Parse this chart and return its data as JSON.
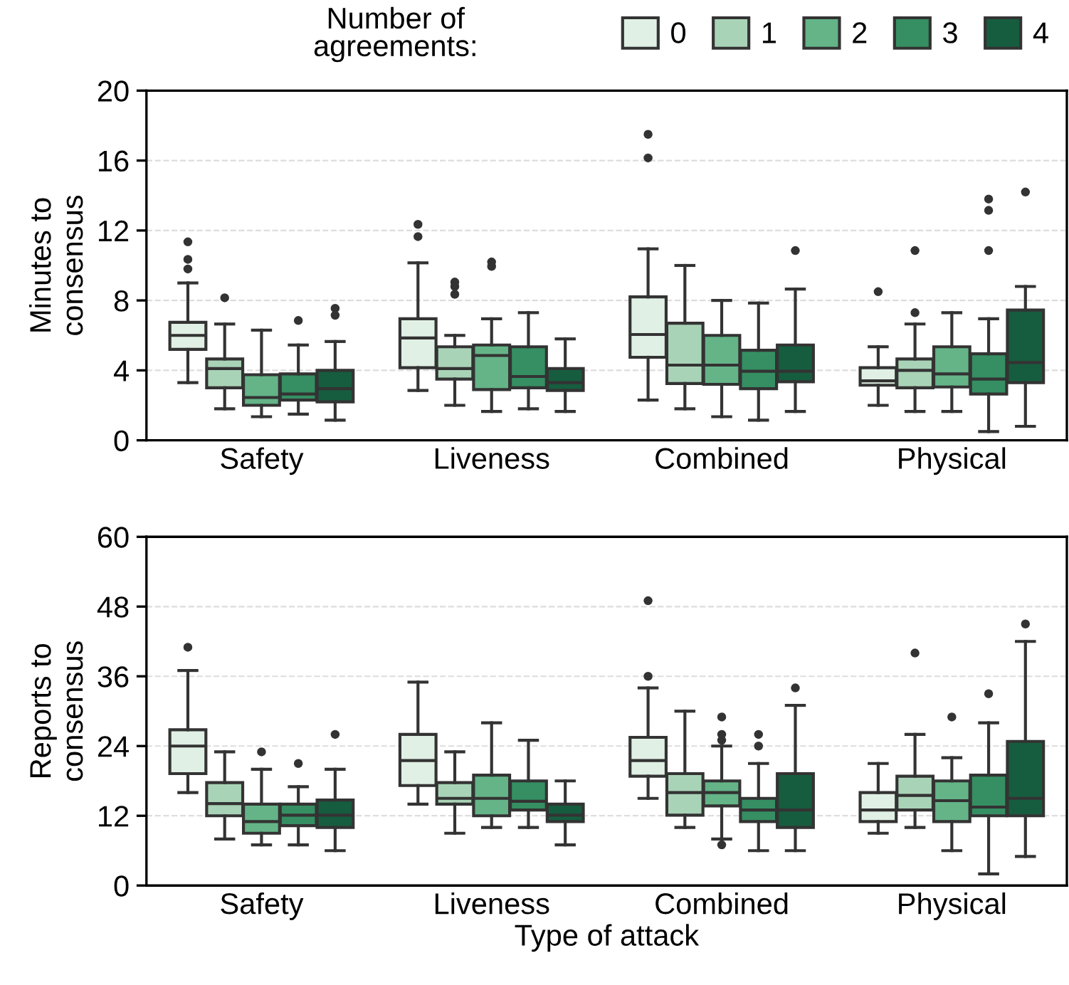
{
  "chart_data": [
    {
      "type": "box",
      "ylabel": "Minutes to\nconsensus",
      "categories": [
        "Safety",
        "Liveness",
        "Combined",
        "Physical"
      ],
      "ylim": [
        0,
        20
      ],
      "yticks": [
        0,
        4,
        8,
        12,
        16,
        20
      ],
      "grid": "y",
      "legend": "top",
      "legend_title": "Number of\nagreements:",
      "series": [
        {
          "name": "0",
          "color": "#e1f0e4",
          "boxes": [
            {
              "low": 3.3,
              "q1": 5.2,
              "median": 6.0,
              "q3": 6.75,
              "high": 9.0,
              "outliers": [
                11.35,
                10.35,
                9.8
              ]
            },
            {
              "low": 2.85,
              "q1": 4.15,
              "median": 5.85,
              "q3": 6.95,
              "high": 10.15,
              "outliers": [
                12.35,
                11.65
              ]
            },
            {
              "low": 2.3,
              "q1": 4.75,
              "median": 6.05,
              "q3": 8.2,
              "high": 10.95,
              "outliers": [
                17.5,
                16.15
              ]
            },
            {
              "low": 2.0,
              "q1": 3.15,
              "median": 3.4,
              "q3": 4.15,
              "high": 5.35,
              "outliers": [
                8.5
              ]
            }
          ]
        },
        {
          "name": "1",
          "color": "#a9d3b7",
          "boxes": [
            {
              "low": 1.8,
              "q1": 3.0,
              "median": 4.1,
              "q3": 4.65,
              "high": 6.65,
              "outliers": [
                8.15
              ]
            },
            {
              "low": 2.0,
              "q1": 3.5,
              "median": 4.1,
              "q3": 5.35,
              "high": 6.0,
              "outliers": [
                9.05,
                8.8,
                8.35
              ]
            },
            {
              "low": 1.8,
              "q1": 3.25,
              "median": 4.3,
              "q3": 6.7,
              "high": 10.0
            },
            {
              "low": 1.65,
              "q1": 3.0,
              "median": 4.0,
              "q3": 4.65,
              "high": 6.65,
              "outliers": [
                10.85,
                7.3
              ]
            }
          ]
        },
        {
          "name": "2",
          "color": "#64b488",
          "boxes": [
            {
              "low": 1.35,
              "q1": 2.0,
              "median": 2.45,
              "q3": 3.75,
              "high": 6.3
            },
            {
              "low": 1.65,
              "q1": 2.9,
              "median": 4.85,
              "q3": 5.45,
              "high": 6.95,
              "outliers": [
                10.2,
                9.95
              ]
            },
            {
              "low": 1.35,
              "q1": 3.2,
              "median": 4.3,
              "q3": 6.0,
              "high": 8.0
            },
            {
              "low": 1.65,
              "q1": 3.05,
              "median": 3.8,
              "q3": 5.35,
              "high": 7.3
            }
          ]
        },
        {
          "name": "3",
          "color": "#358f62",
          "boxes": [
            {
              "low": 1.5,
              "q1": 2.3,
              "median": 2.65,
              "q3": 3.8,
              "high": 5.45,
              "outliers": [
                6.85
              ]
            },
            {
              "low": 1.8,
              "q1": 3.0,
              "median": 3.65,
              "q3": 5.35,
              "high": 7.3
            },
            {
              "low": 1.15,
              "q1": 2.95,
              "median": 3.95,
              "q3": 5.15,
              "high": 7.85
            },
            {
              "low": 0.5,
              "q1": 2.65,
              "median": 3.5,
              "q3": 4.95,
              "high": 6.95,
              "outliers": [
                13.8,
                13.15,
                10.85
              ]
            }
          ]
        },
        {
          "name": "4",
          "color": "#165d3f",
          "boxes": [
            {
              "low": 1.15,
              "q1": 2.2,
              "median": 2.95,
              "q3": 4.0,
              "high": 5.65,
              "outliers": [
                7.55,
                7.15
              ]
            },
            {
              "low": 1.65,
              "q1": 2.85,
              "median": 3.3,
              "q3": 4.1,
              "high": 5.8
            },
            {
              "low": 1.65,
              "q1": 3.35,
              "median": 3.95,
              "q3": 5.45,
              "high": 8.65,
              "outliers": [
                10.85
              ]
            },
            {
              "low": 0.8,
              "q1": 3.3,
              "median": 4.45,
              "q3": 7.45,
              "high": 8.8,
              "outliers": [
                14.2
              ]
            }
          ]
        }
      ]
    },
    {
      "type": "box",
      "ylabel": "Reports to\nconsensus",
      "xlabel": "Type of attack",
      "categories": [
        "Safety",
        "Liveness",
        "Combined",
        "Physical"
      ],
      "ylim": [
        0,
        60
      ],
      "yticks": [
        0,
        12,
        24,
        36,
        48,
        60
      ],
      "grid": "y",
      "series": [
        {
          "color": "#e1f0e4",
          "boxes": [
            {
              "low": 16.0,
              "q1": 19.25,
              "median": 24.0,
              "q3": 26.8,
              "high": 37.0,
              "outliers": [
                41.0
              ]
            },
            {
              "low": 14.0,
              "q1": 17.2,
              "median": 21.5,
              "q3": 26.0,
              "high": 35.0
            },
            {
              "low": 15.0,
              "q1": 18.8,
              "median": 21.5,
              "q3": 25.5,
              "high": 34.0,
              "outliers": [
                49.0,
                36.0
              ]
            },
            {
              "low": 9.0,
              "q1": 11.0,
              "median": 13.0,
              "q3": 16.0,
              "high": 21.0
            }
          ]
        },
        {
          "color": "#a9d3b7",
          "boxes": [
            {
              "low": 8.0,
              "q1": 12.0,
              "median": 14.1,
              "q3": 17.7,
              "high": 23.0
            },
            {
              "low": 9.0,
              "q1": 14.0,
              "median": 15.0,
              "q3": 17.7,
              "high": 23.0
            },
            {
              "low": 10.0,
              "q1": 12.1,
              "median": 16.0,
              "q3": 19.25,
              "high": 30.0
            },
            {
              "low": 10.0,
              "q1": 13.0,
              "median": 15.5,
              "q3": 18.8,
              "high": 26.0,
              "outliers": [
                40.0
              ]
            }
          ]
        },
        {
          "color": "#64b488",
          "boxes": [
            {
              "low": 7.0,
              "q1": 9.0,
              "median": 11.0,
              "q3": 14.0,
              "high": 20.0,
              "outliers": [
                23.0
              ]
            },
            {
              "low": 10.0,
              "q1": 12.0,
              "median": 15.0,
              "q3": 19.0,
              "high": 28.0
            },
            {
              "low": 8.0,
              "q1": 13.7,
              "median": 16.0,
              "q3": 18.0,
              "high": 24.0,
              "outliers": [
                29.0,
                26.0,
                25.0,
                7.0
              ]
            },
            {
              "low": 6.0,
              "q1": 11.0,
              "median": 14.6,
              "q3": 18.0,
              "high": 22.0,
              "outliers": [
                29.0
              ]
            }
          ]
        },
        {
          "color": "#358f62",
          "boxes": [
            {
              "low": 7.0,
              "q1": 10.3,
              "median": 12.1,
              "q3": 14.0,
              "high": 17.0,
              "outliers": [
                21.0
              ]
            },
            {
              "low": 10.0,
              "q1": 13.0,
              "median": 14.5,
              "q3": 18.0,
              "high": 25.0
            },
            {
              "low": 6.0,
              "q1": 11.0,
              "median": 13.0,
              "q3": 15.0,
              "high": 21.0,
              "outliers": [
                26.0,
                24.0
              ]
            },
            {
              "low": 2.0,
              "q1": 12.0,
              "median": 13.5,
              "q3": 19.0,
              "high": 28.0,
              "outliers": [
                33.0
              ]
            }
          ]
        },
        {
          "color": "#165d3f",
          "boxes": [
            {
              "low": 6.0,
              "q1": 10.0,
              "median": 12.1,
              "q3": 14.7,
              "high": 20.0,
              "outliers": [
                26.0
              ]
            },
            {
              "low": 7.0,
              "q1": 11.0,
              "median": 12.1,
              "q3": 14.0,
              "high": 18.0
            },
            {
              "low": 6.0,
              "q1": 10.0,
              "median": 13.0,
              "q3": 19.25,
              "high": 31.0,
              "outliers": [
                34.0
              ]
            },
            {
              "low": 5.0,
              "q1": 12.0,
              "median": 15.0,
              "q3": 24.8,
              "high": 42.0,
              "outliers": [
                45.0
              ]
            }
          ]
        }
      ]
    }
  ]
}
